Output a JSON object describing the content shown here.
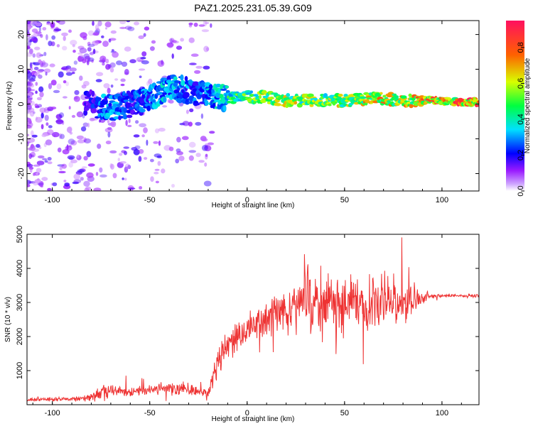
{
  "title": "PAZ1.2025.231.05.39.G09",
  "chart_data": [
    {
      "type": "heatmap",
      "name": "spectrogram",
      "xlabel": "Height of straight line (km)",
      "ylabel": "Frequency (Hz)",
      "xlim": [
        -113,
        119
      ],
      "ylim": [
        -25,
        24
      ],
      "xticks": [
        -100,
        -50,
        0,
        50,
        100
      ],
      "yticks": [
        20,
        10,
        0,
        -10,
        -20
      ],
      "colorbar": {
        "label": "Normalized spectral amplitude",
        "range": [
          0,
          0.95
        ],
        "ticks": [
          0.0,
          0.2,
          0.4,
          0.6,
          0.8
        ],
        "colors": [
          "#ffffff",
          "#9a1aff",
          "#0000ff",
          "#00e0ff",
          "#00ff40",
          "#d8ff00",
          "#ff6000",
          "#ff1060"
        ]
      },
      "trace": {
        "x": [
          -113,
          -95,
          -80,
          -75,
          -68,
          -60,
          -52,
          -45,
          -38,
          -32,
          -25,
          -18,
          -10,
          0,
          10,
          20,
          30,
          40,
          50,
          60,
          70,
          80,
          90,
          100,
          110,
          119
        ],
        "center_hz": [
          0,
          0,
          0,
          -1,
          -1,
          0,
          1,
          3,
          5,
          4,
          3,
          2,
          2,
          2,
          2,
          1,
          1,
          1,
          1,
          1.5,
          1.5,
          1,
          1,
          0.8,
          0.6,
          0.5
        ],
        "amplitude": [
          0.2,
          0.2,
          0.3,
          0.45,
          0.45,
          0.35,
          0.45,
          0.5,
          0.5,
          0.45,
          0.4,
          0.5,
          0.6,
          0.65,
          0.7,
          0.75,
          0.7,
          0.7,
          0.75,
          0.8,
          0.8,
          0.8,
          0.85,
          0.85,
          0.9,
          0.92
        ]
      }
    },
    {
      "type": "line",
      "name": "snr",
      "xlabel": "Height of straight line (km)",
      "ylabel": "SNR (10 * v/v)",
      "xlim": [
        -113,
        119
      ],
      "ylim": [
        0,
        5000
      ],
      "xticks": [
        -100,
        -50,
        0,
        50,
        100
      ],
      "yticks": [
        1000,
        2000,
        3000,
        4000,
        5000
      ],
      "color": "#ee3333",
      "envelope": {
        "x": [
          -113,
          -90,
          -80,
          -75,
          -70,
          -60,
          -50,
          -40,
          -30,
          -25,
          -20,
          -15,
          -10,
          -5,
          0,
          10,
          20,
          25,
          30,
          40,
          50,
          60,
          70,
          80,
          90,
          95,
          100,
          110,
          119
        ],
        "mean": [
          150,
          160,
          220,
          350,
          420,
          380,
          430,
          480,
          460,
          350,
          350,
          1300,
          1700,
          1900,
          2200,
          2500,
          2800,
          2900,
          3100,
          3000,
          2900,
          3000,
          3000,
          2900,
          3100,
          3200,
          3200,
          3200,
          3200
        ],
        "spread": [
          80,
          80,
          150,
          250,
          250,
          200,
          220,
          250,
          250,
          180,
          200,
          700,
          650,
          650,
          600,
          650,
          900,
          1200,
          1400,
          1200,
          1200,
          1300,
          1200,
          1100,
          300,
          100,
          70,
          70,
          70
        ]
      }
    }
  ]
}
